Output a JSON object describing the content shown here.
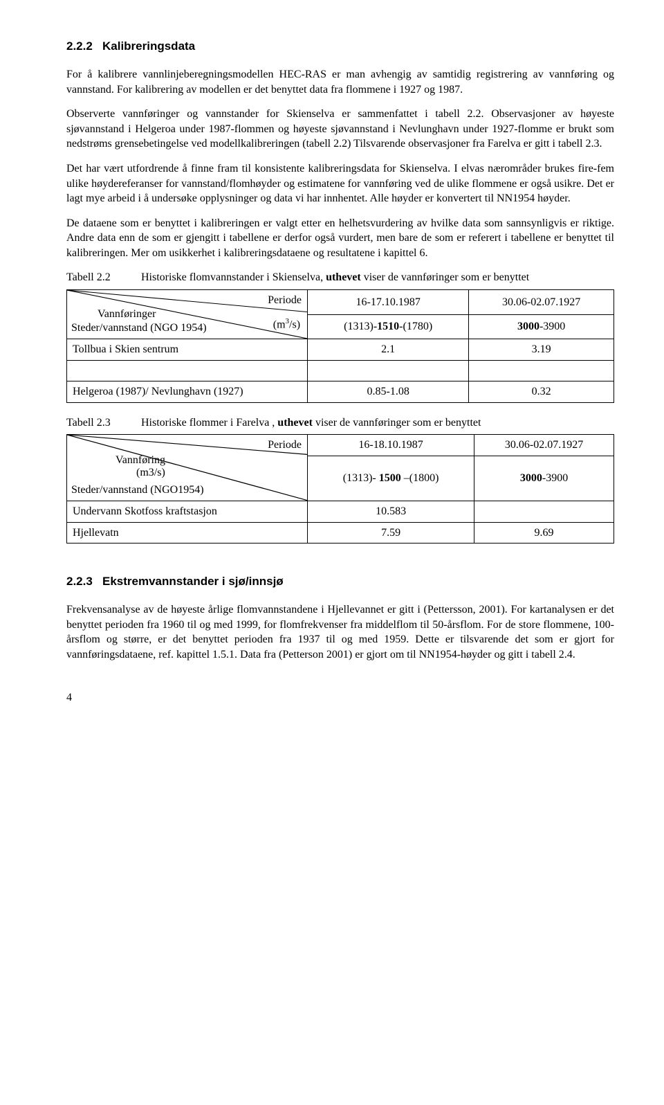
{
  "section_222": {
    "number": "2.2.2",
    "title": "Kalibreringsdata",
    "p1": "For å kalibrere vannlinjeberegningsmodellen HEC-RAS er man avhengig av samtidig registrering av vannføring og vannstand. For kalibrering av modellen er det benyttet data fra flommene i 1927 og 1987.",
    "p2": "Observerte vannføringer og vannstander for Skienselva er sammenfattet i tabell 2.2. Observasjoner av høyeste sjøvannstand i Helgeroa under 1987-flommen og høyeste sjøvannstand i Nevlunghavn under 1927-flomme er brukt som nedstrøms grensebetingelse ved modellkalibreringen (tabell 2.2) Tilsvarende observasjoner fra Farelva er gitt i tabell 2.3.",
    "p3": "Det har vært utfordrende å finne fram til konsistente kalibreringsdata for Skienselva. I elvas nærområder brukes fire-fem ulike høydereferanser for vannstand/flomhøyder og estimatene for vannføring ved de ulike flommene er også usikre. Det er lagt mye arbeid i å undersøke opplysninger og data vi har innhentet. Alle høyder er konvertert til NN1954 høyder.",
    "p4": "De dataene som er benyttet i kalibreringen er valgt etter en helhetsvurdering av hvilke data som sannsynligvis er riktige. Andre data enn de som er gjengitt i tabellene er derfor også vurdert, men bare de som er referert i tabellene er benyttet til kalibreringen. Mer om usikkerhet i kalibreringsdataene og resultatene i kapittel 6."
  },
  "table22": {
    "label": "Tabell 2.2",
    "caption": "Historiske flomvannstander i Skienselva, uthevet viser de vannføringer som er benyttet",
    "diag": {
      "periode": "Periode",
      "vannf": "Vannføringer",
      "unit_pre": "(m",
      "unit_sup": "3",
      "unit_post": "/s)",
      "steder": "Steder/vannstand (NGO 1954)"
    },
    "col1": "16-17.10.1987",
    "col2": "30.06-02.07.1927",
    "row1c1_a": "(1313)-",
    "row1c1_b": "1510",
    "row1c1_c": "-(1780)",
    "row1c2_a": "3000",
    "row1c2_b": "-3900",
    "row2label": "Tollbua i Skien sentrum",
    "row2c1": "2.1",
    "row2c2": "3.19",
    "row4label": "Helgeroa (1987)/ Nevlunghavn (1927)",
    "row4c1": "0.85-1.08",
    "row4c2": "0.32"
  },
  "table23": {
    "label": "Tabell 2.3",
    "caption": "Historiske flommer i Farelva , uthevet viser de vannføringer som er benyttet",
    "diag": {
      "periode": "Periode",
      "vannf": "Vannføring",
      "unit": "(m3/s)",
      "steder": "Steder/vannstand (NGO1954)"
    },
    "col1": "16-18.10.1987",
    "col2": "30.06-02.07.1927",
    "row1c1_a": "(1313)- ",
    "row1c1_b": "1500",
    "row1c1_c": " –(1800)",
    "row1c2_a": "3000",
    "row1c2_b": "-3900",
    "row2label": "Undervann Skotfoss kraftstasjon",
    "row2c1": "10.583",
    "row3label": "Hjellevatn",
    "row3c1": "7.59",
    "row3c2": "9.69"
  },
  "section_223": {
    "number": "2.2.3",
    "title": "Ekstremvannstander i sjø/innsjø",
    "p1": "Frekvensanalyse av de høyeste årlige flomvannstandene i Hjellevannet er gitt i (Pettersson, 2001). For kartanalysen er det benyttet perioden fra 1960 til og med 1999, for flomfrekvenser fra middelflom til 50-årsflom. For de store flommene, 100-årsflom og større, er det benyttet perioden fra 1937 til og med 1959. Dette er tilsvarende det som er gjort for vannføringsdataene, ref. kapittel 1.5.1. Data fra (Petterson 2001) er gjort om til NN1954-høyder og gitt i tabell 2.4."
  },
  "pagenum": "4"
}
